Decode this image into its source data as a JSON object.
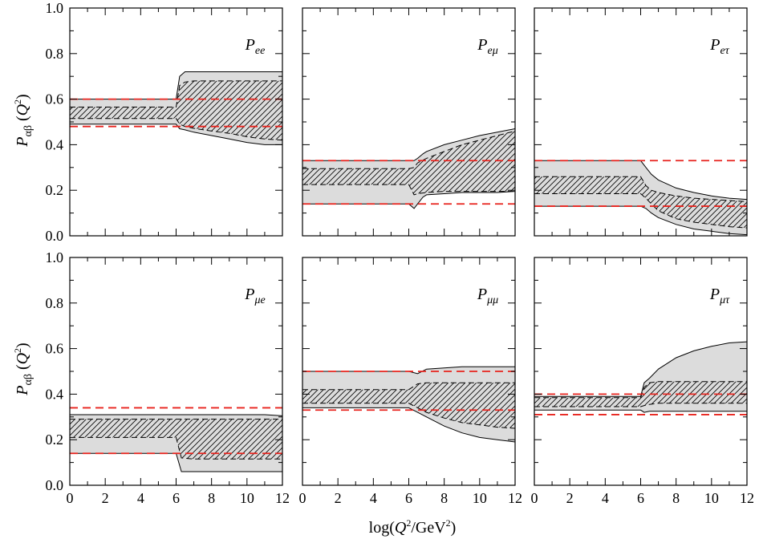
{
  "chart_data": {
    "type": "area",
    "layout": "2x3 grid of panels sharing x and y axes",
    "xlabel": "log(Q²/GeV²)",
    "ylabel": "Pαβ (Q²)",
    "xlim": [
      0,
      12
    ],
    "ylim": [
      0,
      1
    ],
    "xticks": [
      0,
      2,
      4,
      6,
      8,
      10,
      12
    ],
    "yticks": [
      0,
      0.2,
      0.4,
      0.6,
      0.8,
      1.0
    ],
    "ytick_labels": [
      "0.0",
      "0.2",
      "0.4",
      "0.6",
      "0.8",
      "1.0"
    ],
    "legend": "none",
    "series_styles": {
      "outer_band": "light grey filled band with solid black borders",
      "inner_band": "hatched band with dashed black borders",
      "reference_lines": "red dashed horizontal lines"
    },
    "colors": {
      "band_fill": "#dcdcdc",
      "reference_line": "#e8231d",
      "axis": "#000000"
    },
    "panels": [
      {
        "id": "ee",
        "label_main": "P",
        "label_sub": "ee",
        "row": 0,
        "col": 0,
        "outer": {
          "x": [
            0,
            6,
            6.2,
            6.5,
            7,
            8,
            9,
            10,
            11,
            12
          ],
          "upper": [
            0.6,
            0.6,
            0.7,
            0.72,
            0.72,
            0.72,
            0.72,
            0.72,
            0.72,
            0.72
          ],
          "lower": [
            0.49,
            0.49,
            0.47,
            0.465,
            0.455,
            0.44,
            0.425,
            0.41,
            0.4,
            0.4
          ]
        },
        "inner": {
          "x": [
            0,
            6,
            6.2,
            6.5,
            7,
            8,
            9,
            10,
            11,
            12
          ],
          "upper": [
            0.565,
            0.565,
            0.66,
            0.675,
            0.68,
            0.68,
            0.68,
            0.68,
            0.68,
            0.68
          ],
          "lower": [
            0.515,
            0.515,
            0.49,
            0.48,
            0.472,
            0.46,
            0.45,
            0.435,
            0.425,
            0.42
          ]
        },
        "reference": [
          0.6,
          0.48
        ]
      },
      {
        "id": "emu",
        "label_main": "P",
        "label_sub": "eμ",
        "row": 0,
        "col": 1,
        "outer": {
          "x": [
            0,
            6,
            6.3,
            6.5,
            6.8,
            7,
            8,
            9,
            10,
            11,
            12
          ],
          "upper": [
            0.33,
            0.33,
            0.33,
            0.34,
            0.36,
            0.37,
            0.4,
            0.42,
            0.44,
            0.455,
            0.47
          ],
          "lower": [
            0.14,
            0.14,
            0.12,
            0.14,
            0.17,
            0.18,
            0.185,
            0.19,
            0.19,
            0.19,
            0.195
          ]
        },
        "inner": {
          "x": [
            0,
            6,
            6.3,
            6.5,
            7,
            8,
            9,
            10,
            11,
            12
          ],
          "upper": [
            0.295,
            0.295,
            0.3,
            0.32,
            0.34,
            0.37,
            0.4,
            0.42,
            0.44,
            0.46
          ],
          "lower": [
            0.225,
            0.225,
            0.18,
            0.185,
            0.19,
            0.195,
            0.195,
            0.195,
            0.195,
            0.195
          ]
        },
        "reference": [
          0.33,
          0.14
        ]
      },
      {
        "id": "etau",
        "label_main": "P",
        "label_sub": "eτ",
        "row": 0,
        "col": 2,
        "outer": {
          "x": [
            0,
            6,
            6.3,
            6.6,
            7,
            8,
            9,
            10,
            11,
            12
          ],
          "upper": [
            0.33,
            0.33,
            0.3,
            0.27,
            0.245,
            0.21,
            0.19,
            0.175,
            0.165,
            0.16
          ],
          "lower": [
            0.13,
            0.13,
            0.12,
            0.1,
            0.08,
            0.05,
            0.03,
            0.02,
            0.01,
            0.005
          ]
        },
        "inner": {
          "x": [
            0,
            6,
            6.3,
            6.6,
            7,
            8,
            9,
            10,
            11,
            12
          ],
          "upper": [
            0.26,
            0.26,
            0.22,
            0.2,
            0.19,
            0.175,
            0.165,
            0.16,
            0.155,
            0.15
          ],
          "lower": [
            0.185,
            0.185,
            0.165,
            0.14,
            0.11,
            0.075,
            0.06,
            0.05,
            0.04,
            0.035
          ]
        },
        "reference": [
          0.33,
          0.13
        ]
      },
      {
        "id": "mue",
        "label_main": "P",
        "label_sub": "μe",
        "row": 1,
        "col": 0,
        "outer": {
          "x": [
            0,
            6,
            6.3,
            7,
            8,
            9,
            10,
            11,
            12
          ],
          "upper": [
            0.31,
            0.31,
            0.31,
            0.31,
            0.31,
            0.31,
            0.31,
            0.31,
            0.305
          ],
          "lower": [
            0.14,
            0.14,
            0.06,
            0.06,
            0.06,
            0.06,
            0.06,
            0.06,
            0.06
          ]
        },
        "inner": {
          "x": [
            0,
            6,
            6.3,
            7,
            8,
            9,
            10,
            11,
            12
          ],
          "upper": [
            0.29,
            0.29,
            0.29,
            0.29,
            0.29,
            0.29,
            0.29,
            0.29,
            0.29
          ],
          "lower": [
            0.21,
            0.21,
            0.12,
            0.115,
            0.115,
            0.115,
            0.115,
            0.115,
            0.115
          ]
        },
        "reference": [
          0.34,
          0.14
        ]
      },
      {
        "id": "mumu",
        "label_main": "P",
        "label_sub": "μμ",
        "row": 1,
        "col": 1,
        "outer": {
          "x": [
            0,
            6,
            6.5,
            7,
            8,
            9,
            10,
            11,
            12
          ],
          "upper": [
            0.5,
            0.5,
            0.49,
            0.51,
            0.515,
            0.52,
            0.52,
            0.52,
            0.52
          ],
          "lower": [
            0.34,
            0.34,
            0.32,
            0.3,
            0.26,
            0.23,
            0.21,
            0.2,
            0.19
          ]
        },
        "inner": {
          "x": [
            0,
            6,
            6.5,
            7,
            8,
            9,
            10,
            11,
            12
          ],
          "upper": [
            0.42,
            0.42,
            0.445,
            0.45,
            0.45,
            0.45,
            0.45,
            0.45,
            0.45
          ],
          "lower": [
            0.36,
            0.36,
            0.34,
            0.32,
            0.295,
            0.275,
            0.265,
            0.255,
            0.25
          ]
        },
        "reference": [
          0.5,
          0.33
        ]
      },
      {
        "id": "mutau",
        "label_main": "P",
        "label_sub": "μτ",
        "row": 1,
        "col": 2,
        "outer": {
          "x": [
            0,
            6,
            6.2,
            6.5,
            7,
            8,
            9,
            10,
            11,
            12
          ],
          "upper": [
            0.39,
            0.39,
            0.45,
            0.47,
            0.51,
            0.56,
            0.59,
            0.61,
            0.625,
            0.63
          ],
          "lower": [
            0.33,
            0.33,
            0.32,
            0.325,
            0.325,
            0.325,
            0.325,
            0.325,
            0.325,
            0.325
          ]
        },
        "inner": {
          "x": [
            0,
            6,
            6.2,
            6.5,
            7,
            8,
            9,
            10,
            11,
            12
          ],
          "upper": [
            0.385,
            0.385,
            0.43,
            0.45,
            0.455,
            0.455,
            0.455,
            0.455,
            0.455,
            0.455
          ],
          "lower": [
            0.345,
            0.345,
            0.35,
            0.355,
            0.36,
            0.36,
            0.36,
            0.36,
            0.36,
            0.36
          ]
        },
        "reference": [
          0.4,
          0.31
        ]
      }
    ]
  }
}
